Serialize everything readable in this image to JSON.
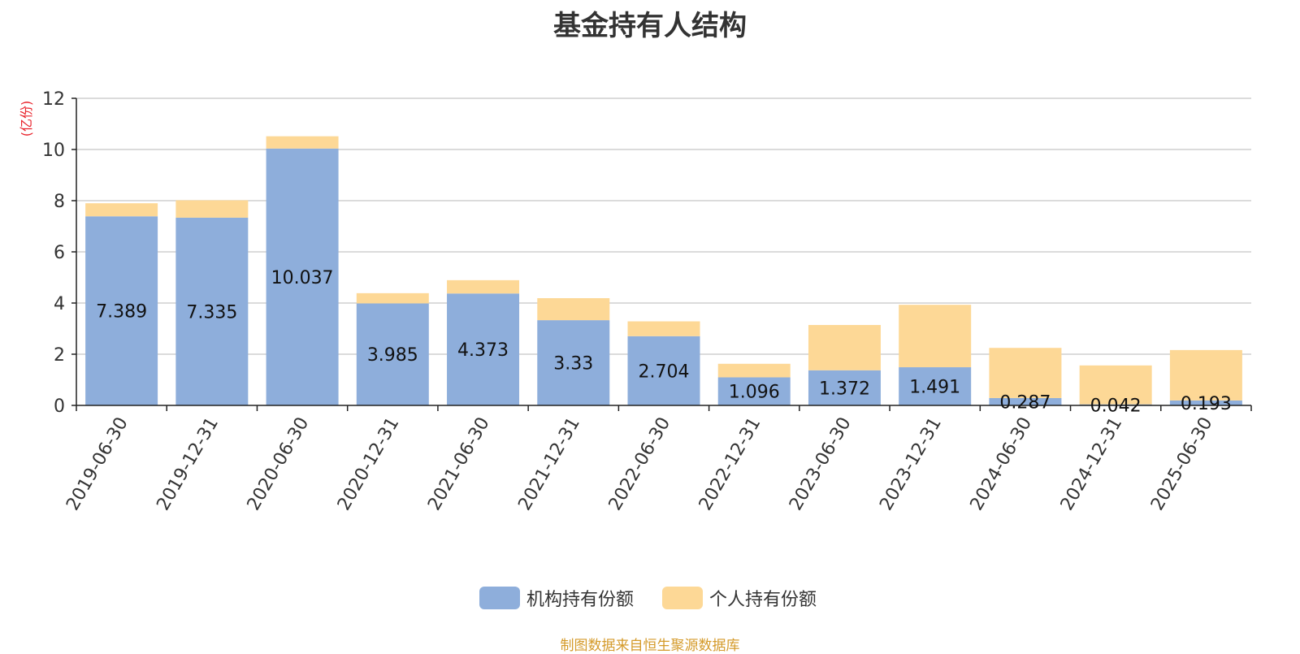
{
  "colors": {
    "institutional": "#8eaedb",
    "individual": "#fdd896",
    "ylabel": "#e8212a",
    "grid": "#cfcfcf",
    "axis": "#222222",
    "source": "#d49a2a"
  },
  "footer": {
    "source": "制图数据来自恒生聚源数据库"
  },
  "chart_data": {
    "type": "bar",
    "stacked": true,
    "title": "基金持有人结构",
    "ylabel": "(亿份)",
    "ylim": [
      0,
      12
    ],
    "yticks": [
      0,
      2,
      4,
      6,
      8,
      10,
      12
    ],
    "grid": true,
    "legend_position": "bottom",
    "categories": [
      "2019-06-30",
      "2019-12-31",
      "2020-06-30",
      "2020-12-31",
      "2021-06-30",
      "2021-12-31",
      "2022-06-30",
      "2022-12-31",
      "2023-06-30",
      "2023-12-31",
      "2024-06-30",
      "2024-12-31",
      "2025-06-30"
    ],
    "series": [
      {
        "name": "机构持有份额",
        "color": "#8eaedb",
        "values": [
          7.389,
          7.335,
          10.037,
          3.985,
          4.373,
          3.33,
          2.704,
          1.096,
          1.372,
          1.491,
          0.287,
          0.042,
          0.193
        ],
        "data_labels": [
          "7.389",
          "7.335",
          "10.037",
          "3.985",
          "4.373",
          "3.33",
          "2.704",
          "1.096",
          "1.372",
          "1.491",
          "0.287",
          "0.042",
          "0.193"
        ]
      },
      {
        "name": "个人持有份额",
        "color": "#fdd896",
        "values": [
          0.51,
          0.68,
          0.48,
          0.4,
          0.52,
          0.86,
          0.58,
          0.53,
          1.77,
          2.44,
          1.96,
          1.52,
          1.97
        ]
      }
    ]
  }
}
